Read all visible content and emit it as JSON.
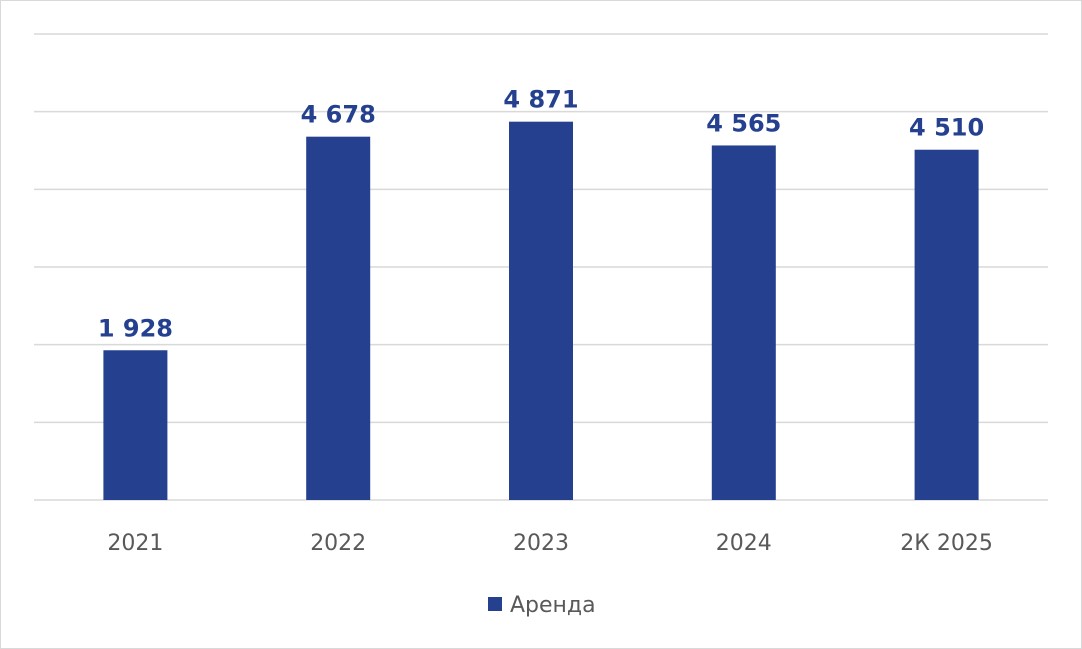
{
  "chart_data": {
    "type": "bar",
    "categories": [
      "2021",
      "2022",
      "2023",
      "2024",
      "2К 2025"
    ],
    "series": [
      {
        "name": "Аренда",
        "values": [
          1928,
          4678,
          4871,
          4565,
          4510
        ],
        "value_labels": [
          "1 928",
          "4 678",
          "4 871",
          "4 565",
          "4 510"
        ],
        "color": "#24408e"
      }
    ],
    "ylim": [
      0,
      6000
    ],
    "grid": true,
    "legend": "bottom"
  }
}
